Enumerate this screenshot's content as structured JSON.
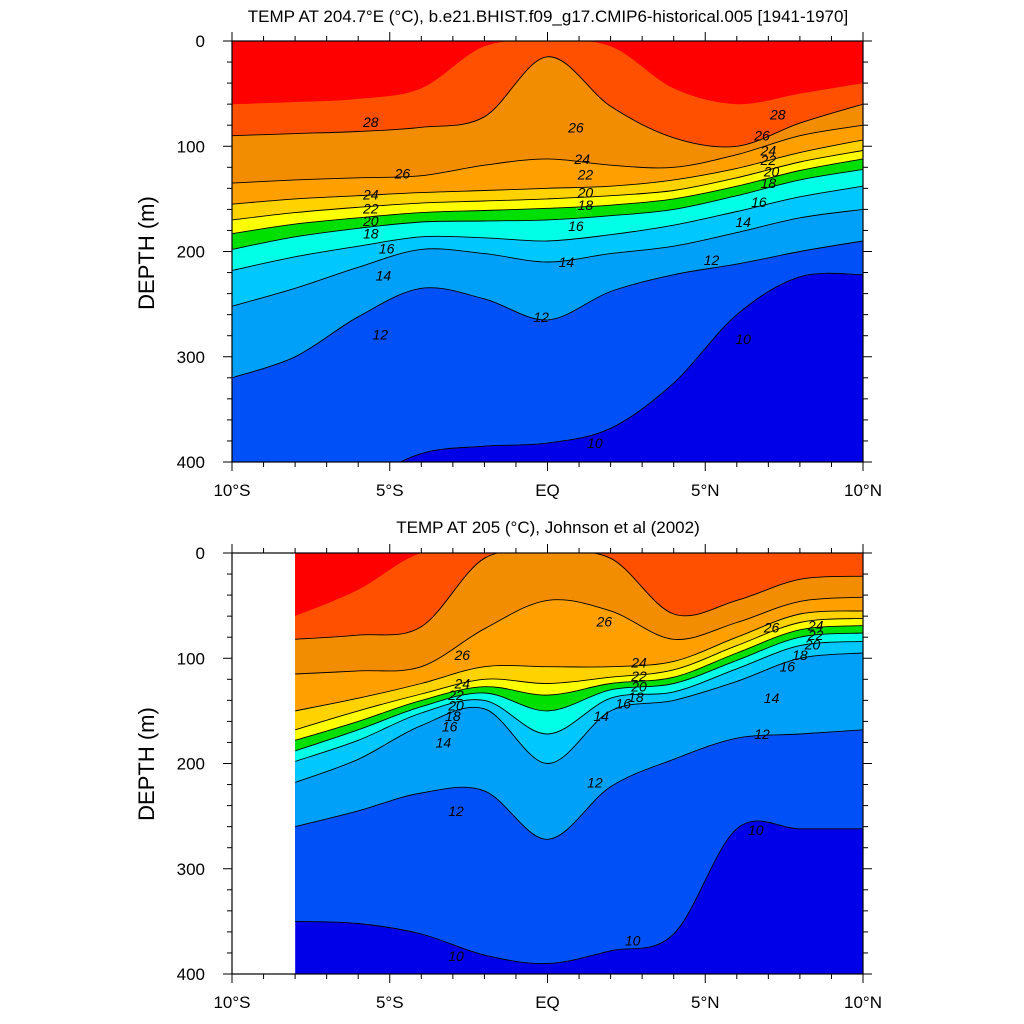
{
  "chart_data": [
    {
      "type": "contour",
      "title": "TEMP AT 204.7°E (°C), b.e21.BHIST.f09_g17.CMIP6-historical.005 [1941-1970]",
      "xlabel": "",
      "ylabel": "DEPTH (m)",
      "xlim": [
        -10,
        10
      ],
      "ylim": [
        0,
        400
      ],
      "y_inverted": true,
      "x_tick_values": [
        -10,
        -5,
        0,
        5,
        10
      ],
      "x_tick_labels": [
        "10°S",
        "5°S",
        "EQ",
        "5°N",
        "10°N"
      ],
      "y_tick_values": [
        0,
        100,
        200,
        300,
        400
      ],
      "y_tick_labels": [
        "0",
        "100",
        "200",
        "300",
        "400"
      ],
      "contour_interval_degC": 1,
      "data_xmin": -10,
      "x": [
        -10,
        -8,
        -6,
        -4,
        -2,
        0,
        2,
        4,
        6,
        8,
        10
      ],
      "isotherms": [
        {
          "level": 10,
          "depth": [
            null,
            null,
            422,
            392,
            385,
            382,
            368,
            325,
            260,
            224,
            222
          ]
        },
        {
          "level": 12,
          "depth": [
            320,
            300,
            262,
            235,
            245,
            265,
            238,
            222,
            212,
            200,
            190
          ]
        },
        {
          "level": 14,
          "depth": [
            252,
            235,
            215,
            198,
            202,
            210,
            202,
            195,
            182,
            168,
            160
          ]
        },
        {
          "level": 16,
          "depth": [
            218,
            205,
            195,
            186,
            187,
            190,
            184,
            175,
            162,
            148,
            138
          ]
        },
        {
          "level": 18,
          "depth": [
            198,
            186,
            178,
            172,
            171,
            170,
            166,
            160,
            147,
            132,
            122
          ]
        },
        {
          "level": 20,
          "depth": [
            183,
            174,
            168,
            163,
            161,
            159,
            156,
            150,
            138,
            123,
            112
          ]
        },
        {
          "level": 22,
          "depth": [
            170,
            163,
            158,
            154,
            152,
            150,
            147,
            142,
            130,
            115,
            104
          ]
        },
        {
          "level": 24,
          "depth": [
            155,
            150,
            147,
            144,
            142,
            140,
            138,
            132,
            121,
            106,
            94
          ]
        },
        {
          "level": 26,
          "depth": [
            135,
            132,
            130,
            128,
            118,
            112,
            118,
            120,
            108,
            90,
            80
          ]
        },
        {
          "level": 28,
          "depth": [
            90,
            88,
            86,
            82,
            72,
            15,
            62,
            92,
            100,
            78,
            60
          ]
        },
        {
          "level": 29,
          "depth": [
            60,
            58,
            55,
            45,
            5,
            0,
            5,
            45,
            60,
            50,
            40
          ]
        }
      ],
      "contour_labels": [
        {
          "text": "28",
          "x": -5.6,
          "y": 77
        },
        {
          "text": "26",
          "x": -4.6,
          "y": 126
        },
        {
          "text": "24",
          "x": -5.6,
          "y": 146
        },
        {
          "text": "22",
          "x": -5.6,
          "y": 159
        },
        {
          "text": "20",
          "x": -5.6,
          "y": 171
        },
        {
          "text": "18",
          "x": -5.6,
          "y": 183
        },
        {
          "text": "16",
          "x": -5.1,
          "y": 197
        },
        {
          "text": "14",
          "x": -5.2,
          "y": 223
        },
        {
          "text": "12",
          "x": -5.3,
          "y": 279
        },
        {
          "text": "26",
          "x": 0.9,
          "y": 82
        },
        {
          "text": "24",
          "x": 1.1,
          "y": 112
        },
        {
          "text": "22",
          "x": 1.2,
          "y": 127
        },
        {
          "text": "20",
          "x": 1.2,
          "y": 144
        },
        {
          "text": "18",
          "x": 1.2,
          "y": 156
        },
        {
          "text": "16",
          "x": 0.9,
          "y": 176
        },
        {
          "text": "14",
          "x": 0.6,
          "y": 210
        },
        {
          "text": "12",
          "x": -0.2,
          "y": 262
        },
        {
          "text": "10",
          "x": 1.5,
          "y": 382
        },
        {
          "text": "28",
          "x": 7.3,
          "y": 70
        },
        {
          "text": "26",
          "x": 6.8,
          "y": 90
        },
        {
          "text": "24",
          "x": 7.0,
          "y": 104
        },
        {
          "text": "22",
          "x": 7.0,
          "y": 113
        },
        {
          "text": "20",
          "x": 7.1,
          "y": 124
        },
        {
          "text": "18",
          "x": 7.0,
          "y": 135
        },
        {
          "text": "16",
          "x": 6.7,
          "y": 153
        },
        {
          "text": "14",
          "x": 6.2,
          "y": 172
        },
        {
          "text": "12",
          "x": 5.2,
          "y": 208
        },
        {
          "text": "10",
          "x": 6.2,
          "y": 283
        }
      ]
    },
    {
      "type": "contour",
      "title": "TEMP AT 205 (°C), Johnson et al (2002)",
      "xlabel": "",
      "ylabel": "DEPTH (m)",
      "xlim": [
        -10,
        10
      ],
      "ylim": [
        0,
        400
      ],
      "y_inverted": true,
      "x_tick_values": [
        -10,
        -5,
        0,
        5,
        10
      ],
      "x_tick_labels": [
        "10°S",
        "5°S",
        "EQ",
        "5°N",
        "10°N"
      ],
      "y_tick_values": [
        0,
        100,
        200,
        300,
        400
      ],
      "y_tick_labels": [
        "0",
        "100",
        "200",
        "300",
        "400"
      ],
      "contour_interval_degC": 1,
      "data_xmin": -8,
      "x": [
        -8,
        -6,
        -4,
        -2,
        0,
        2,
        4,
        6,
        8,
        10
      ],
      "isotherms": [
        {
          "level": 10,
          "depth": [
            350,
            352,
            362,
            382,
            390,
            378,
            362,
            262,
            262,
            262
          ]
        },
        {
          "level": 12,
          "depth": [
            260,
            245,
            228,
            226,
            272,
            222,
            196,
            176,
            172,
            168
          ]
        },
        {
          "level": 14,
          "depth": [
            218,
            196,
            164,
            148,
            200,
            150,
            140,
            122,
            100,
            95
          ]
        },
        {
          "level": 16,
          "depth": [
            198,
            178,
            152,
            140,
            172,
            138,
            132,
            110,
            88,
            84
          ]
        },
        {
          "level": 18,
          "depth": [
            188,
            168,
            146,
            133,
            150,
            130,
            124,
            102,
            80,
            76
          ]
        },
        {
          "level": 20,
          "depth": [
            178,
            160,
            140,
            127,
            135,
            124,
            118,
            95,
            73,
            69
          ]
        },
        {
          "level": 22,
          "depth": [
            168,
            150,
            134,
            120,
            124,
            118,
            111,
            88,
            66,
            62
          ]
        },
        {
          "level": 24,
          "depth": [
            150,
            138,
            124,
            108,
            108,
            108,
            103,
            80,
            58,
            55
          ]
        },
        {
          "level": 26,
          "depth": [
            115,
            112,
            108,
            72,
            45,
            55,
            82,
            66,
            46,
            42
          ]
        },
        {
          "level": 28,
          "depth": [
            82,
            78,
            70,
            5,
            0,
            5,
            58,
            45,
            25,
            22
          ]
        },
        {
          "level": 29,
          "depth": [
            60,
            35,
            0,
            0,
            0,
            0,
            0,
            0,
            0,
            0
          ]
        }
      ],
      "contour_labels": [
        {
          "text": "26",
          "x": -2.7,
          "y": 97
        },
        {
          "text": "24",
          "x": -2.7,
          "y": 124
        },
        {
          "text": "22",
          "x": -2.9,
          "y": 135
        },
        {
          "text": "20",
          "x": -2.9,
          "y": 145
        },
        {
          "text": "18",
          "x": -3.0,
          "y": 155
        },
        {
          "text": "16",
          "x": -3.1,
          "y": 165
        },
        {
          "text": "14",
          "x": -3.3,
          "y": 180
        },
        {
          "text": "12",
          "x": -2.9,
          "y": 245
        },
        {
          "text": "10",
          "x": -2.9,
          "y": 383
        },
        {
          "text": "26",
          "x": 1.8,
          "y": 65
        },
        {
          "text": "24",
          "x": 2.9,
          "y": 104
        },
        {
          "text": "22",
          "x": 2.9,
          "y": 117
        },
        {
          "text": "20",
          "x": 2.9,
          "y": 127
        },
        {
          "text": "18",
          "x": 2.8,
          "y": 137
        },
        {
          "text": "16",
          "x": 2.4,
          "y": 143
        },
        {
          "text": "14",
          "x": 1.7,
          "y": 155
        },
        {
          "text": "12",
          "x": 1.5,
          "y": 218
        },
        {
          "text": "10",
          "x": 2.7,
          "y": 368
        },
        {
          "text": "26",
          "x": 7.1,
          "y": 71
        },
        {
          "text": "24",
          "x": 8.5,
          "y": 69
        },
        {
          "text": "22",
          "x": 8.5,
          "y": 78
        },
        {
          "text": "20",
          "x": 8.4,
          "y": 87
        },
        {
          "text": "18",
          "x": 8.0,
          "y": 97
        },
        {
          "text": "16",
          "x": 7.6,
          "y": 108
        },
        {
          "text": "14",
          "x": 7.1,
          "y": 138
        },
        {
          "text": "12",
          "x": 6.8,
          "y": 172
        },
        {
          "text": "10",
          "x": 6.6,
          "y": 263
        }
      ]
    }
  ]
}
